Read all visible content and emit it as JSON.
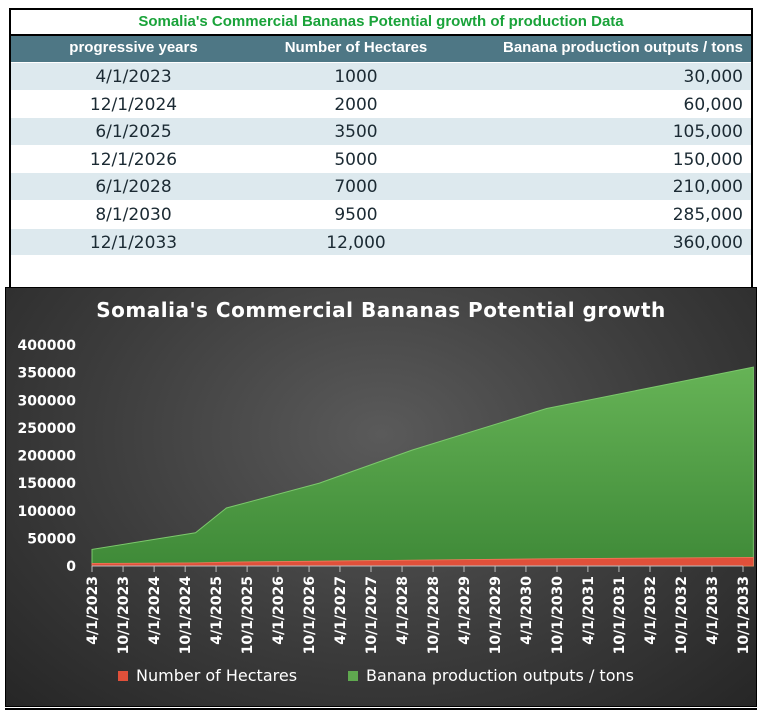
{
  "table": {
    "title": "Somalia's Commercial Bananas Potential growth of production Data",
    "headers": [
      "progressive years",
      "Number of Hectares",
      "Banana production outputs / tons"
    ],
    "rows": [
      [
        "4/1/2023",
        "1000",
        "30,000"
      ],
      [
        "12/1/2024",
        "2000",
        "60,000"
      ],
      [
        "6/1/2025",
        "3500",
        "105,000"
      ],
      [
        "12/1/2026",
        "5000",
        "150,000"
      ],
      [
        "6/1/2028",
        "7000",
        "210,000"
      ],
      [
        "8/1/2030",
        "9500",
        "285,000"
      ],
      [
        "12/1/2033",
        "12,000",
        "360,000"
      ]
    ]
  },
  "colors": {
    "header_bg": "#4e7785",
    "row_alt": "#dde9ee",
    "title_green": "#1aa33a",
    "area_green": "#5fa84f",
    "area_red": "#e0503a"
  },
  "chart_data": {
    "type": "area",
    "title": "Somalia's Commercial Bananas Potential growth",
    "x_tick_labels": [
      "4/1/2023",
      "10/1/2023",
      "4/1/2024",
      "10/1/2024",
      "4/1/2025",
      "10/1/2025",
      "4/1/2026",
      "10/1/2026",
      "4/1/2027",
      "10/1/2027",
      "4/1/2028",
      "10/1/2028",
      "4/1/2029",
      "10/1/2029",
      "4/1/2030",
      "10/1/2030",
      "4/1/2031",
      "10/1/2031",
      "4/1/2032",
      "10/1/2032",
      "4/1/2033",
      "10/1/2033"
    ],
    "ylim": [
      0,
      400000
    ],
    "y_ticks": [
      0,
      50000,
      100000,
      150000,
      200000,
      250000,
      300000,
      350000,
      400000
    ],
    "series": [
      {
        "name": "Number of Hectares",
        "color": "#e0503a",
        "points": [
          [
            "4/1/2023",
            1000
          ],
          [
            "12/1/2024",
            2000
          ],
          [
            "6/1/2025",
            3500
          ],
          [
            "12/1/2026",
            5000
          ],
          [
            "6/1/2028",
            7000
          ],
          [
            "8/1/2030",
            9500
          ],
          [
            "12/1/2033",
            12000
          ]
        ]
      },
      {
        "name": "Banana production outputs / tons",
        "color": "#5fa84f",
        "points": [
          [
            "4/1/2023",
            30000
          ],
          [
            "12/1/2024",
            60000
          ],
          [
            "6/1/2025",
            105000
          ],
          [
            "12/1/2026",
            150000
          ],
          [
            "6/1/2028",
            210000
          ],
          [
            "8/1/2030",
            285000
          ],
          [
            "12/1/2033",
            360000
          ]
        ]
      }
    ],
    "legend_position": "bottom",
    "grid": false
  }
}
